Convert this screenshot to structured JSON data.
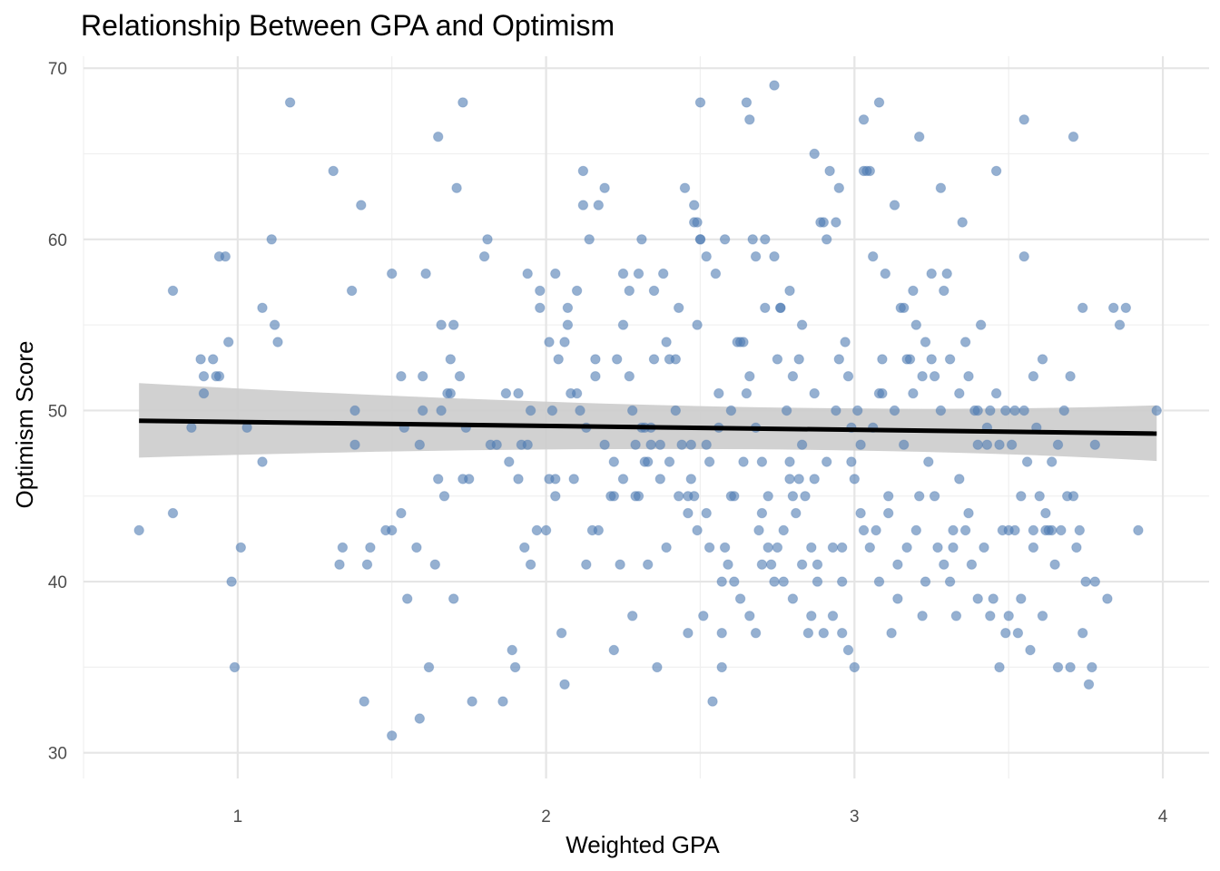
{
  "chart_data": {
    "type": "scatter",
    "title": "Relationship Between GPA and Optimism",
    "xlabel": "Weighted GPA",
    "ylabel": "Optimism Score",
    "xlim": [
      0.5,
      4.15
    ],
    "ylim": [
      28.5,
      70.7
    ],
    "x_ticks": [
      1,
      2,
      3,
      4
    ],
    "y_ticks": [
      30,
      40,
      50,
      60,
      70
    ],
    "grid": true,
    "legend": "none",
    "point_color": "#4F7CB3",
    "trend_color": "#000000",
    "band_color": "#CCCCCC",
    "trend_line": {
      "x": [
        0.68,
        3.98
      ],
      "y": [
        49.4,
        48.65
      ],
      "ci_lower": [
        47.25,
        47.05
      ],
      "ci_upper": [
        51.6,
        50.3
      ],
      "ci_mid_x": 2.72,
      "ci_mid_lower": 48.35,
      "ci_mid_upper": 49.55
    },
    "points": [
      [
        0.68,
        43
      ],
      [
        0.79,
        57
      ],
      [
        0.79,
        44
      ],
      [
        0.85,
        49
      ],
      [
        0.88,
        53
      ],
      [
        0.89,
        52
      ],
      [
        0.89,
        51
      ],
      [
        0.92,
        53
      ],
      [
        0.93,
        52
      ],
      [
        0.94,
        52
      ],
      [
        0.94,
        59
      ],
      [
        0.96,
        59
      ],
      [
        0.97,
        54
      ],
      [
        0.98,
        40
      ],
      [
        0.99,
        35
      ],
      [
        1.01,
        42
      ],
      [
        1.03,
        49
      ],
      [
        1.08,
        56
      ],
      [
        1.08,
        47
      ],
      [
        1.11,
        60
      ],
      [
        1.12,
        55
      ],
      [
        1.13,
        54
      ],
      [
        1.17,
        68
      ],
      [
        1.31,
        64
      ],
      [
        1.33,
        41
      ],
      [
        1.34,
        42
      ],
      [
        1.37,
        57
      ],
      [
        1.38,
        48
      ],
      [
        1.38,
        50
      ],
      [
        1.4,
        62
      ],
      [
        1.41,
        33
      ],
      [
        1.42,
        41
      ],
      [
        1.43,
        42
      ],
      [
        1.48,
        43
      ],
      [
        1.5,
        43
      ],
      [
        1.5,
        31
      ],
      [
        1.5,
        58
      ],
      [
        1.53,
        44
      ],
      [
        1.53,
        52
      ],
      [
        1.54,
        49
      ],
      [
        1.55,
        39
      ],
      [
        1.58,
        42
      ],
      [
        1.59,
        48
      ],
      [
        1.59,
        32
      ],
      [
        1.6,
        50
      ],
      [
        1.6,
        52
      ],
      [
        1.61,
        58
      ],
      [
        1.62,
        35
      ],
      [
        1.64,
        41
      ],
      [
        1.65,
        46
      ],
      [
        1.65,
        66
      ],
      [
        1.66,
        55
      ],
      [
        1.66,
        50
      ],
      [
        1.67,
        45
      ],
      [
        1.68,
        51
      ],
      [
        1.69,
        51
      ],
      [
        1.69,
        53
      ],
      [
        1.7,
        55
      ],
      [
        1.7,
        39
      ],
      [
        1.71,
        63
      ],
      [
        1.72,
        52
      ],
      [
        1.73,
        68
      ],
      [
        1.73,
        46
      ],
      [
        1.74,
        49
      ],
      [
        1.75,
        46
      ],
      [
        1.76,
        33
      ],
      [
        1.8,
        59
      ],
      [
        1.81,
        60
      ],
      [
        1.82,
        48
      ],
      [
        1.84,
        48
      ],
      [
        1.86,
        33
      ],
      [
        1.87,
        51
      ],
      [
        1.88,
        47
      ],
      [
        1.89,
        36
      ],
      [
        1.9,
        35
      ],
      [
        1.91,
        46
      ],
      [
        1.91,
        51
      ],
      [
        1.92,
        48
      ],
      [
        1.93,
        42
      ],
      [
        1.94,
        48
      ],
      [
        1.94,
        58
      ],
      [
        1.95,
        41
      ],
      [
        1.97,
        43
      ],
      [
        1.98,
        57
      ],
      [
        2.0,
        43
      ],
      [
        2.01,
        46
      ],
      [
        2.02,
        50
      ],
      [
        2.03,
        46
      ],
      [
        2.03,
        45
      ],
      [
        2.03,
        58
      ],
      [
        2.05,
        37
      ],
      [
        2.06,
        54
      ],
      [
        2.06,
        34
      ],
      [
        2.07,
        56
      ],
      [
        2.08,
        51
      ],
      [
        2.09,
        46
      ],
      [
        2.1,
        57
      ],
      [
        2.11,
        50
      ],
      [
        2.12,
        64
      ],
      [
        2.12,
        62
      ],
      [
        2.13,
        41
      ],
      [
        2.14,
        60
      ],
      [
        2.15,
        43
      ],
      [
        2.16,
        53
      ],
      [
        2.17,
        43
      ],
      [
        2.17,
        62
      ],
      [
        2.19,
        63
      ],
      [
        2.21,
        45
      ],
      [
        2.22,
        45
      ],
      [
        2.22,
        36
      ],
      [
        2.23,
        53
      ],
      [
        2.24,
        41
      ],
      [
        2.25,
        58
      ],
      [
        2.25,
        55
      ],
      [
        2.27,
        52
      ],
      [
        2.28,
        38
      ],
      [
        2.29,
        48
      ],
      [
        2.29,
        45
      ],
      [
        2.3,
        58
      ],
      [
        2.3,
        45
      ],
      [
        2.32,
        49
      ],
      [
        2.32,
        47
      ],
      [
        2.33,
        41
      ],
      [
        2.33,
        47
      ],
      [
        2.34,
        49
      ],
      [
        2.35,
        53
      ],
      [
        2.36,
        35
      ],
      [
        2.37,
        48
      ],
      [
        2.38,
        58
      ],
      [
        2.39,
        42
      ],
      [
        2.4,
        53
      ],
      [
        2.42,
        53
      ],
      [
        2.44,
        48
      ],
      [
        2.45,
        63
      ],
      [
        2.46,
        37
      ],
      [
        2.47,
        48
      ],
      [
        2.48,
        62
      ],
      [
        2.48,
        61
      ],
      [
        2.48,
        45
      ],
      [
        2.49,
        55
      ],
      [
        2.49,
        61
      ],
      [
        2.5,
        60
      ],
      [
        2.5,
        60
      ],
      [
        2.51,
        38
      ],
      [
        2.52,
        59
      ],
      [
        2.53,
        47
      ],
      [
        2.54,
        33
      ],
      [
        2.55,
        58
      ],
      [
        2.56,
        51
      ],
      [
        2.57,
        35
      ],
      [
        2.57,
        37
      ],
      [
        2.58,
        60
      ],
      [
        2.58,
        42
      ],
      [
        2.59,
        41
      ],
      [
        2.6,
        45
      ],
      [
        2.61,
        45
      ],
      [
        2.62,
        54
      ],
      [
        2.63,
        54
      ],
      [
        2.64,
        54
      ],
      [
        2.65,
        51
      ],
      [
        2.66,
        52
      ],
      [
        2.67,
        60
      ],
      [
        2.68,
        37
      ],
      [
        2.68,
        59
      ],
      [
        2.69,
        43
      ],
      [
        2.7,
        41
      ],
      [
        2.7,
        47
      ],
      [
        2.71,
        60
      ],
      [
        2.72,
        45
      ],
      [
        2.73,
        41
      ],
      [
        2.74,
        59
      ],
      [
        2.75,
        42
      ],
      [
        2.76,
        56
      ],
      [
        2.76,
        56
      ],
      [
        2.77,
        43
      ],
      [
        2.78,
        50
      ],
      [
        2.79,
        46
      ],
      [
        2.79,
        57
      ],
      [
        2.8,
        45
      ],
      [
        2.8,
        52
      ],
      [
        2.81,
        44
      ],
      [
        2.82,
        46
      ],
      [
        2.82,
        53
      ],
      [
        2.83,
        55
      ],
      [
        2.84,
        45
      ],
      [
        2.85,
        37
      ],
      [
        2.86,
        42
      ],
      [
        2.87,
        46
      ],
      [
        2.88,
        40
      ],
      [
        2.89,
        61
      ],
      [
        2.9,
        61
      ],
      [
        2.91,
        60
      ],
      [
        2.92,
        64
      ],
      [
        2.93,
        42
      ],
      [
        2.94,
        50
      ],
      [
        2.95,
        63
      ],
      [
        2.96,
        37
      ],
      [
        2.96,
        42
      ],
      [
        2.97,
        54
      ],
      [
        2.98,
        52
      ],
      [
        2.99,
        47
      ],
      [
        3.0,
        46
      ],
      [
        3.01,
        50
      ],
      [
        3.02,
        44
      ],
      [
        3.03,
        64
      ],
      [
        3.04,
        64
      ],
      [
        3.05,
        64
      ],
      [
        3.06,
        59
      ],
      [
        3.07,
        43
      ],
      [
        3.08,
        51
      ],
      [
        3.09,
        51
      ],
      [
        3.1,
        58
      ],
      [
        3.11,
        45
      ],
      [
        3.12,
        37
      ],
      [
        3.13,
        62
      ],
      [
        3.14,
        39
      ],
      [
        3.15,
        56
      ],
      [
        3.16,
        56
      ],
      [
        3.17,
        53
      ],
      [
        3.18,
        53
      ],
      [
        3.19,
        57
      ],
      [
        3.2,
        55
      ],
      [
        3.21,
        45
      ],
      [
        3.22,
        38
      ],
      [
        3.23,
        54
      ],
      [
        3.24,
        47
      ],
      [
        3.25,
        58
      ],
      [
        3.26,
        52
      ],
      [
        3.27,
        42
      ],
      [
        3.28,
        63
      ],
      [
        3.29,
        57
      ],
      [
        3.3,
        58
      ],
      [
        3.31,
        40
      ],
      [
        3.32,
        43
      ],
      [
        3.33,
        38
      ],
      [
        3.34,
        46
      ],
      [
        3.35,
        61
      ],
      [
        3.36,
        54
      ],
      [
        3.37,
        44
      ],
      [
        3.38,
        41
      ],
      [
        3.39,
        50
      ],
      [
        3.4,
        48
      ],
      [
        3.41,
        55
      ],
      [
        3.42,
        42
      ],
      [
        3.43,
        49
      ],
      [
        3.44,
        50
      ],
      [
        3.45,
        39
      ],
      [
        3.46,
        64
      ],
      [
        3.47,
        48
      ],
      [
        3.48,
        43
      ],
      [
        3.49,
        37
      ],
      [
        3.5,
        43
      ],
      [
        3.51,
        48
      ],
      [
        3.52,
        43
      ],
      [
        3.53,
        37
      ],
      [
        3.54,
        39
      ],
      [
        3.55,
        59
      ],
      [
        3.56,
        47
      ],
      [
        3.57,
        36
      ],
      [
        3.58,
        42
      ],
      [
        3.59,
        49
      ],
      [
        3.6,
        45
      ],
      [
        3.61,
        38
      ],
      [
        3.62,
        43
      ],
      [
        3.63,
        43
      ],
      [
        3.64,
        43
      ],
      [
        3.65,
        41
      ],
      [
        3.66,
        35
      ],
      [
        3.67,
        43
      ],
      [
        3.68,
        50
      ],
      [
        3.69,
        45
      ],
      [
        3.7,
        35
      ],
      [
        3.71,
        45
      ],
      [
        3.72,
        42
      ],
      [
        3.73,
        43
      ],
      [
        3.74,
        37
      ],
      [
        3.75,
        40
      ],
      [
        3.76,
        34
      ],
      [
        3.77,
        35
      ],
      [
        3.78,
        40
      ],
      [
        2.5,
        68
      ],
      [
        2.65,
        68
      ],
      [
        2.66,
        67
      ],
      [
        2.74,
        69
      ],
      [
        2.87,
        65
      ],
      [
        2.94,
        61
      ],
      [
        3.03,
        67
      ],
      [
        3.08,
        68
      ],
      [
        3.21,
        66
      ],
      [
        3.55,
        67
      ],
      [
        3.71,
        66
      ],
      [
        2.42,
        50
      ],
      [
        2.46,
        45
      ],
      [
        2.53,
        42
      ],
      [
        2.57,
        40
      ],
      [
        2.61,
        40
      ],
      [
        2.63,
        39
      ],
      [
        2.66,
        38
      ],
      [
        2.7,
        44
      ],
      [
        2.72,
        42
      ],
      [
        2.74,
        40
      ],
      [
        2.77,
        40
      ],
      [
        2.8,
        39
      ],
      [
        2.83,
        41
      ],
      [
        2.86,
        38
      ],
      [
        2.88,
        41
      ],
      [
        2.9,
        37
      ],
      [
        2.93,
        38
      ],
      [
        2.96,
        40
      ],
      [
        2.98,
        36
      ],
      [
        3.0,
        35
      ],
      [
        3.03,
        43
      ],
      [
        3.05,
        42
      ],
      [
        3.08,
        40
      ],
      [
        3.11,
        44
      ],
      [
        3.14,
        41
      ],
      [
        3.17,
        42
      ],
      [
        3.2,
        43
      ],
      [
        3.23,
        40
      ],
      [
        3.26,
        45
      ],
      [
        3.29,
        41
      ],
      [
        3.32,
        42
      ],
      [
        3.36,
        43
      ],
      [
        3.4,
        39
      ],
      [
        3.44,
        38
      ],
      [
        3.47,
        35
      ],
      [
        3.5,
        38
      ],
      [
        3.54,
        45
      ],
      [
        3.58,
        43
      ],
      [
        3.62,
        44
      ],
      [
        3.66,
        48
      ],
      [
        3.7,
        52
      ],
      [
        3.74,
        56
      ],
      [
        3.78,
        48
      ],
      [
        3.82,
        39
      ],
      [
        3.84,
        56
      ],
      [
        3.86,
        55
      ],
      [
        3.88,
        56
      ],
      [
        3.92,
        43
      ],
      [
        3.98,
        50
      ],
      [
        2.27,
        57
      ],
      [
        2.31,
        60
      ],
      [
        2.35,
        57
      ],
      [
        2.39,
        54
      ],
      [
        2.43,
        56
      ],
      [
        2.47,
        46
      ],
      [
        2.52,
        48
      ],
      [
        2.56,
        49
      ],
      [
        2.6,
        50
      ],
      [
        2.64,
        47
      ],
      [
        2.68,
        49
      ],
      [
        2.71,
        56
      ],
      [
        2.75,
        53
      ],
      [
        2.79,
        47
      ],
      [
        2.83,
        48
      ],
      [
        2.87,
        51
      ],
      [
        2.91,
        47
      ],
      [
        2.95,
        53
      ],
      [
        2.99,
        49
      ],
      [
        3.02,
        48
      ],
      [
        3.06,
        49
      ],
      [
        3.09,
        53
      ],
      [
        3.13,
        50
      ],
      [
        3.16,
        48
      ],
      [
        3.19,
        51
      ],
      [
        3.22,
        52
      ],
      [
        3.25,
        53
      ],
      [
        3.28,
        50
      ],
      [
        3.31,
        53
      ],
      [
        3.34,
        51
      ],
      [
        3.37,
        52
      ],
      [
        3.4,
        50
      ],
      [
        3.43,
        48
      ],
      [
        3.46,
        51
      ],
      [
        3.49,
        50
      ],
      [
        3.52,
        50
      ],
      [
        3.55,
        50
      ],
      [
        3.58,
        52
      ],
      [
        3.61,
        53
      ],
      [
        3.64,
        47
      ],
      [
        1.95,
        50
      ],
      [
        1.98,
        56
      ],
      [
        2.01,
        54
      ],
      [
        2.04,
        53
      ],
      [
        2.07,
        55
      ],
      [
        2.1,
        51
      ],
      [
        2.13,
        49
      ],
      [
        2.16,
        52
      ],
      [
        2.19,
        48
      ],
      [
        2.22,
        47
      ],
      [
        2.25,
        46
      ],
      [
        2.28,
        50
      ],
      [
        2.31,
        49
      ],
      [
        2.34,
        48
      ],
      [
        2.37,
        46
      ],
      [
        2.4,
        47
      ],
      [
        2.43,
        45
      ],
      [
        2.46,
        44
      ],
      [
        2.49,
        43
      ],
      [
        2.52,
        44
      ]
    ]
  }
}
